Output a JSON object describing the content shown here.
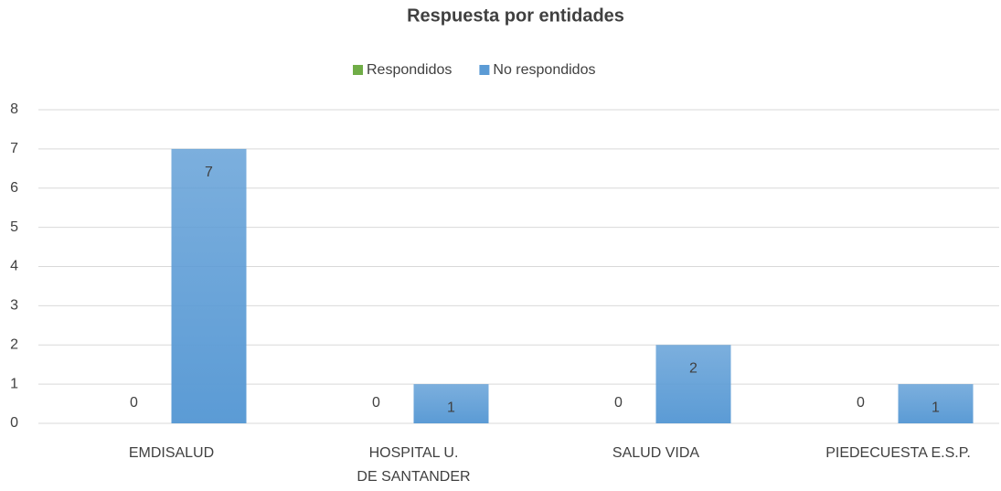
{
  "chart_data": {
    "type": "bar",
    "title": "Respuesta por entidades",
    "categories": [
      "EMDISALUD",
      "HOSPITAL U. DE SANTANDER",
      "SALUD VIDA",
      "PIEDECUESTA E.S.P."
    ],
    "series": [
      {
        "name": "Respondidos",
        "color": "#70ad47",
        "values": [
          0,
          0,
          0,
          0
        ]
      },
      {
        "name": "No respondidos",
        "color": "#5b9bd5",
        "values": [
          7,
          1,
          2,
          1
        ]
      }
    ],
    "ylim": [
      0,
      8
    ],
    "yticks": [
      0,
      1,
      2,
      3,
      4,
      5,
      6,
      7,
      8
    ],
    "grid": true,
    "legend": "top"
  }
}
